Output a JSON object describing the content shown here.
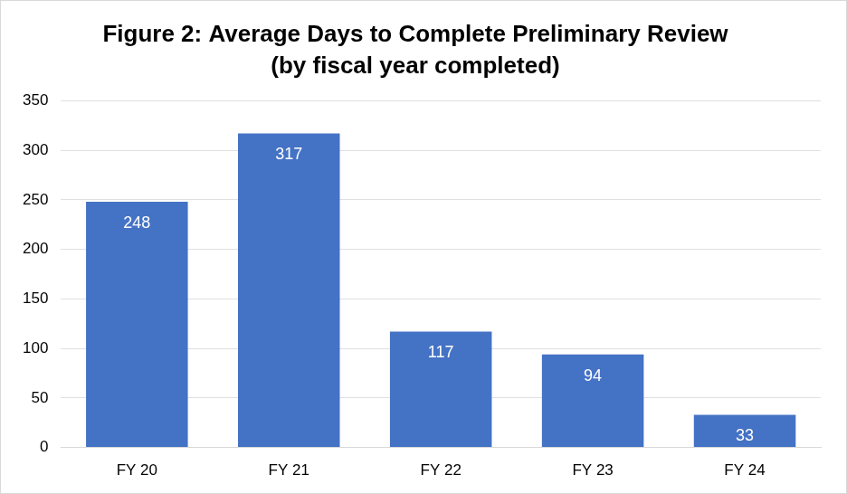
{
  "chart_data": {
    "type": "bar",
    "title": "Figure 2: Average Days to Complete Preliminary Review",
    "subtitle": "(by fiscal year completed)",
    "categories": [
      "FY 20",
      "FY 21",
      "FY 22",
      "FY 23",
      "FY 24"
    ],
    "values": [
      248,
      317,
      117,
      94,
      33
    ],
    "color": "#4472c4",
    "ylim": [
      0,
      350
    ],
    "yticks": [
      0,
      50,
      100,
      150,
      200,
      250,
      300,
      350
    ],
    "grid": true,
    "data_labels": true
  }
}
